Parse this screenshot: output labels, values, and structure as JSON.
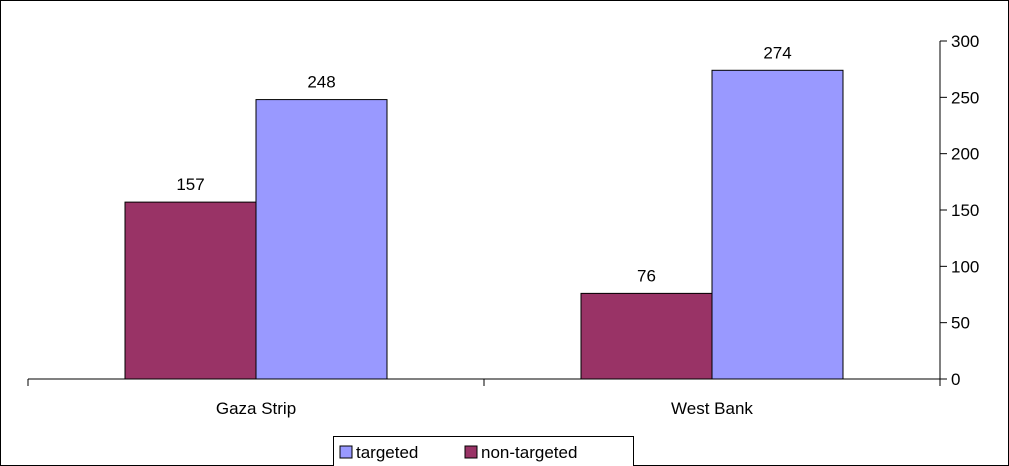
{
  "chart_data": {
    "type": "bar",
    "categories": [
      "Gaza Strip",
      "West Bank"
    ],
    "series": [
      {
        "name": "non-targeted",
        "values": [
          157,
          76
        ],
        "color": "#993366"
      },
      {
        "name": "targeted",
        "values": [
          248,
          274
        ],
        "color": "#9999ff"
      }
    ],
    "ylim": [
      0,
      300
    ],
    "yticks": [
      "0",
      "50",
      "100",
      "150",
      "200",
      "250",
      "300"
    ],
    "y_axis_side": "right",
    "legend_position": "bottom",
    "legend_order": [
      "targeted",
      "non-targeted"
    ],
    "grid": false,
    "data_labels": true
  }
}
